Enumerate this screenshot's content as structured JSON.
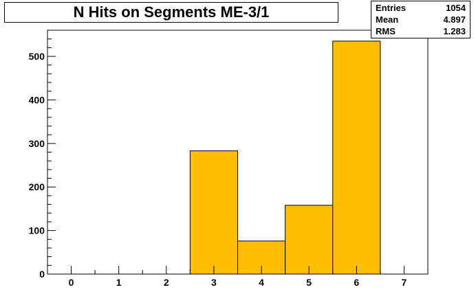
{
  "chart_data": {
    "type": "bar",
    "title": "N Hits on Segments ME-3/1",
    "xlabel": "",
    "ylabel": "",
    "bin_edges": [
      -0.5,
      0.5,
      1.5,
      2.5,
      3.5,
      4.5,
      5.5,
      6.5,
      7.5
    ],
    "categories": [
      "0",
      "1",
      "2",
      "3",
      "4",
      "5",
      "6",
      "7"
    ],
    "values": [
      0,
      0,
      0,
      283,
      76,
      158,
      535,
      0
    ],
    "xlim": [
      -0.5,
      7.5
    ],
    "ylim": [
      0,
      560
    ],
    "x_ticks": [
      "0",
      "1",
      "2",
      "3",
      "4",
      "5",
      "6",
      "7"
    ],
    "y_ticks": [
      "0",
      "100",
      "200",
      "300",
      "400",
      "500"
    ],
    "grid": false,
    "fill_color": "#ffbf00",
    "stats": {
      "entries_label": "Entries",
      "entries_value": "1054",
      "mean_label": "Mean",
      "mean_value": "4.897",
      "rms_label": "RMS",
      "rms_value": "1.283"
    }
  }
}
